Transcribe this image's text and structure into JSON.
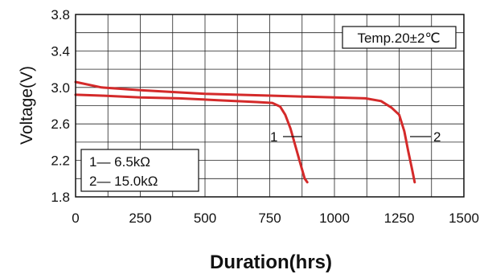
{
  "chart_data": {
    "type": "line",
    "title": "",
    "xlabel": "Duration(hrs)",
    "ylabel": "Voltage(V)",
    "xlim": [
      0,
      1500
    ],
    "ylim": [
      1.8,
      3.8
    ],
    "xticks": [
      "0",
      "250",
      "500",
      "750",
      "1000",
      "1250",
      "1500"
    ],
    "yticks": [
      "1.8",
      "2.2",
      "2.6",
      "3.0",
      "3.4",
      "3.8"
    ],
    "grid": true,
    "legend_position": "bottom-left",
    "legend": [
      {
        "number": "1",
        "label": "1— 6.5kΩ"
      },
      {
        "number": "2",
        "label": "2— 15.0kΩ"
      }
    ],
    "annotation": "Temp.20±2℃",
    "series": [
      {
        "label_text": "1",
        "color": "#d42a2a",
        "x": [
          0,
          100,
          250,
          400,
          550,
          700,
          760,
          790,
          810,
          830,
          850,
          870,
          885,
          895
        ],
        "y": [
          2.92,
          2.91,
          2.89,
          2.88,
          2.86,
          2.84,
          2.83,
          2.79,
          2.7,
          2.55,
          2.35,
          2.15,
          2.0,
          1.96
        ]
      },
      {
        "label_text": "2",
        "color": "#d42a2a",
        "x": [
          0,
          100,
          250,
          500,
          750,
          1000,
          1120,
          1180,
          1220,
          1250,
          1270,
          1285,
          1300,
          1310
        ],
        "y": [
          3.06,
          3.0,
          2.97,
          2.93,
          2.91,
          2.89,
          2.88,
          2.85,
          2.78,
          2.7,
          2.52,
          2.3,
          2.1,
          1.96
        ]
      }
    ]
  }
}
